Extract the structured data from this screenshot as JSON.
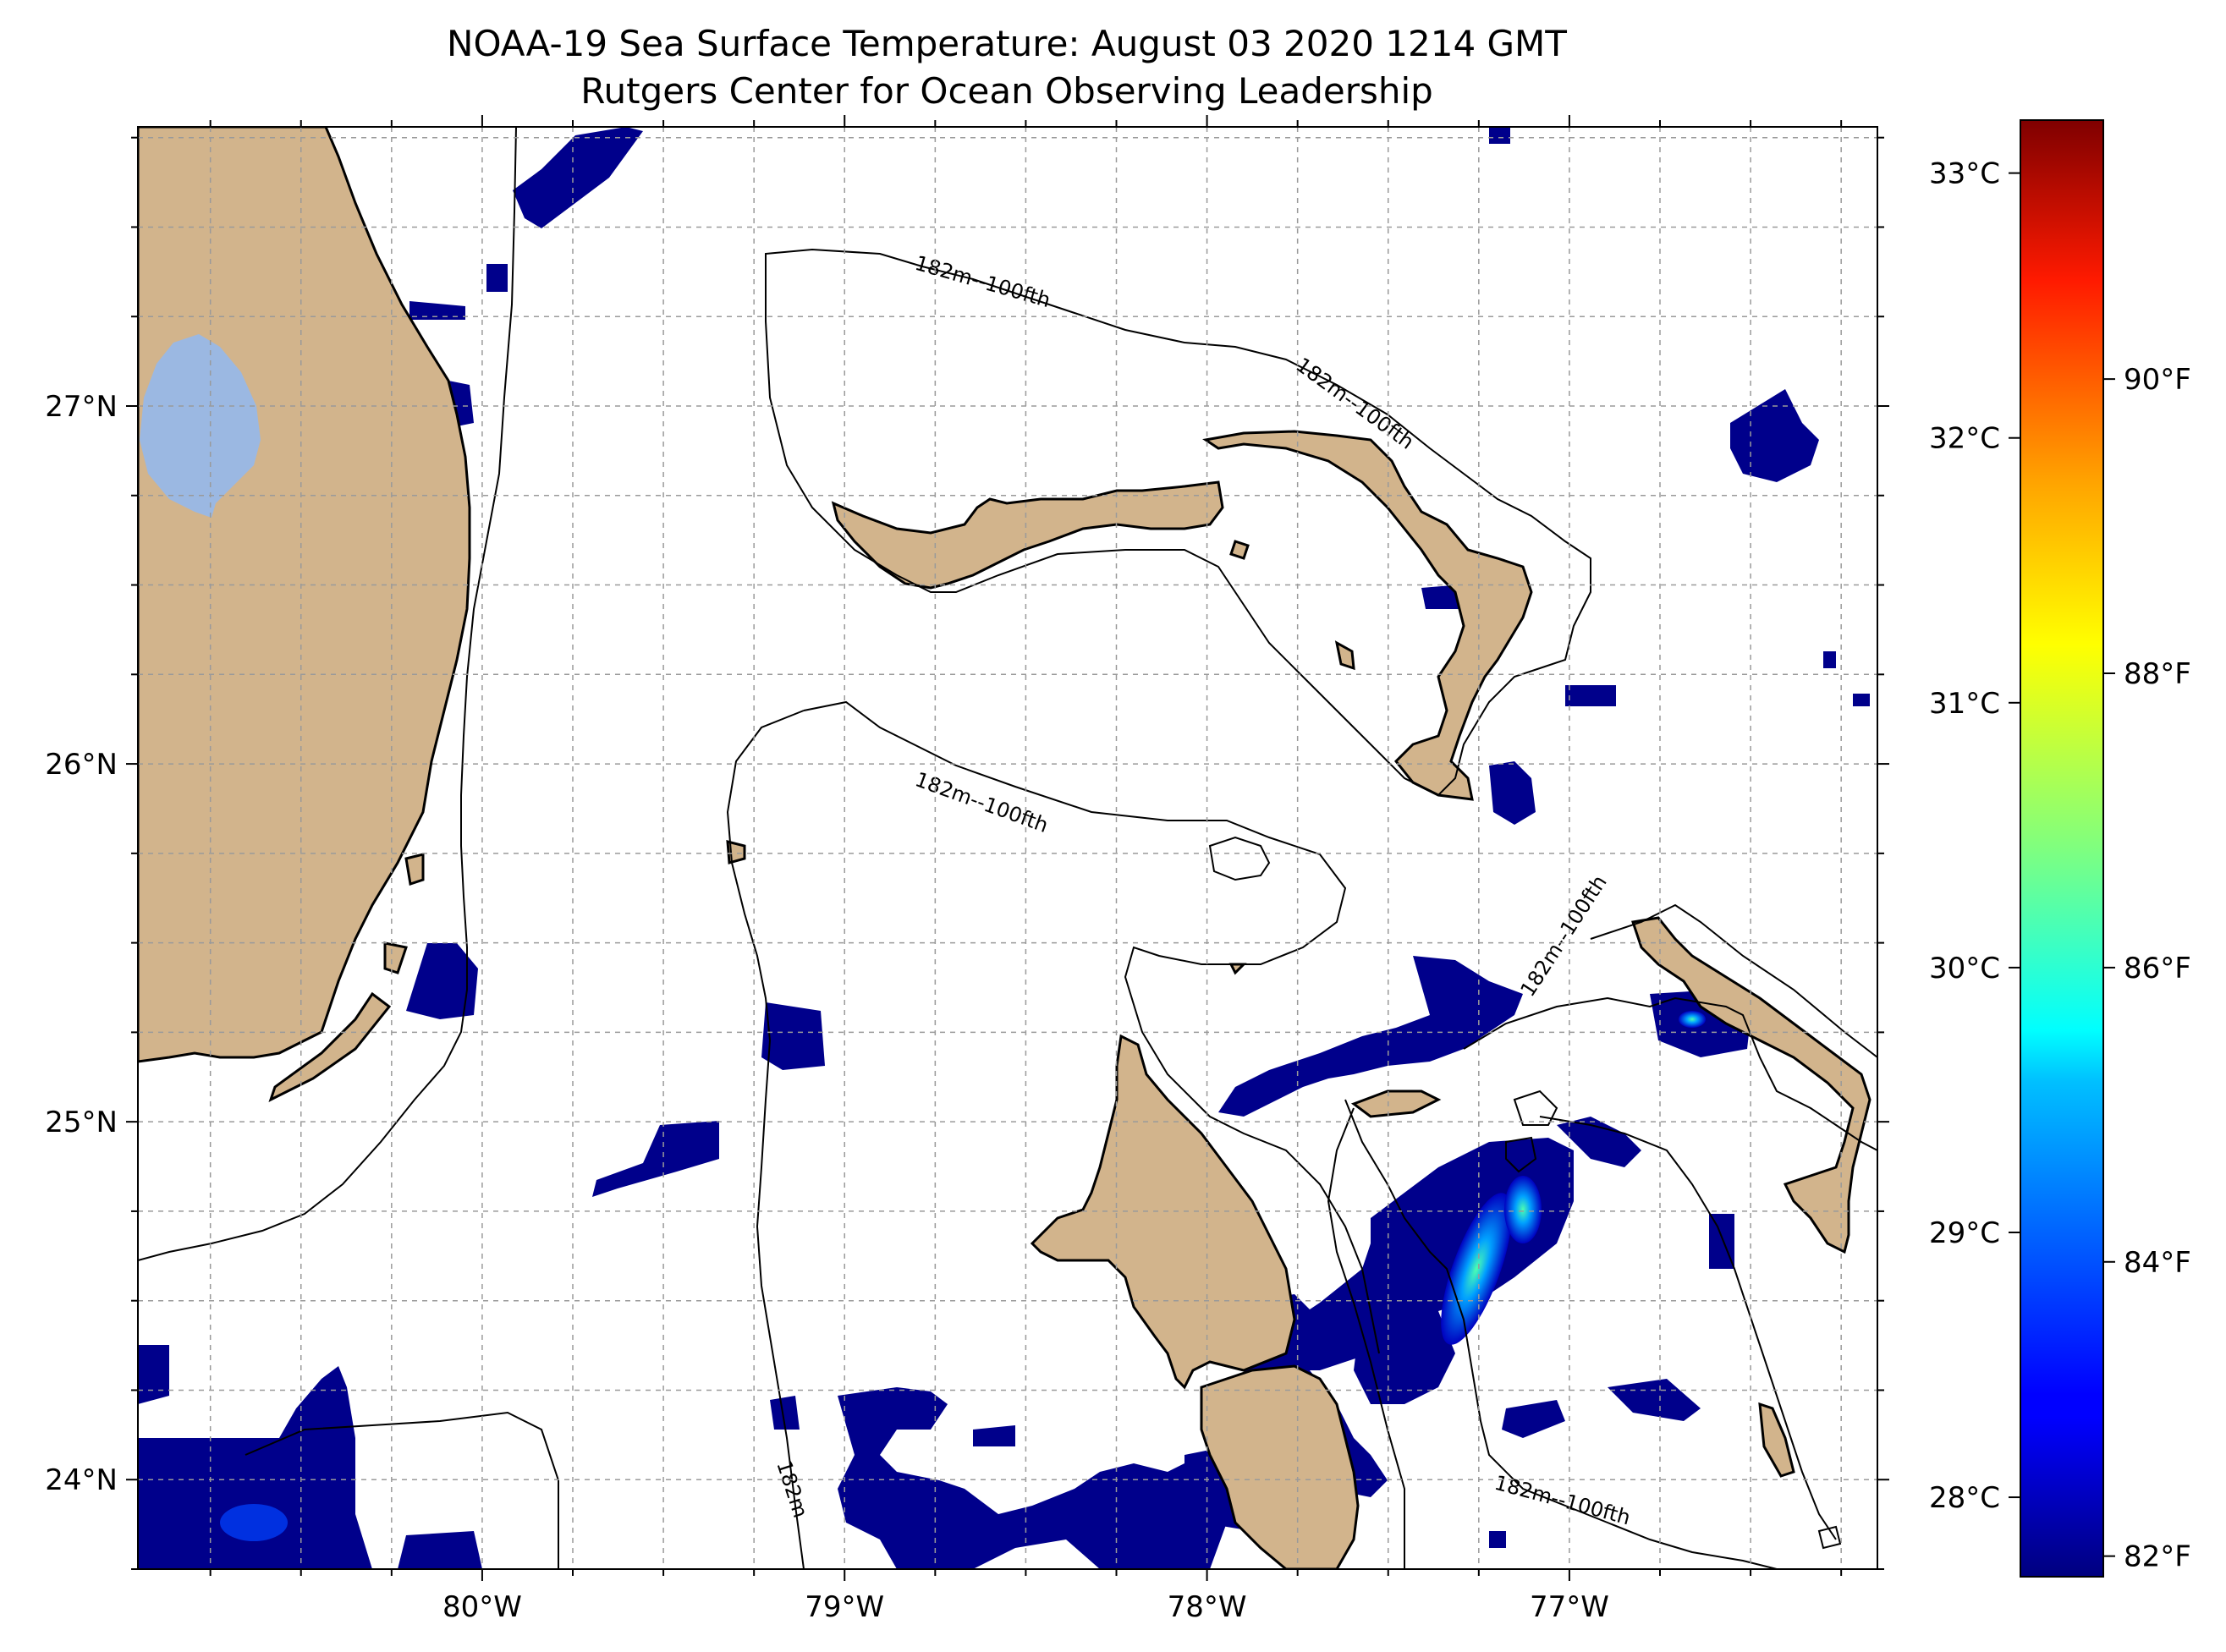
{
  "title": {
    "line1": "NOAA-19 Sea Surface Temperature: August 03 2020 1214 GMT",
    "line2": "Rutgers Center for Ocean Observing Leadership"
  },
  "map": {
    "lon_range": [
      -80.95,
      -76.15
    ],
    "lat_range": [
      23.75,
      27.78
    ],
    "lon_ticks": [
      {
        "value": -80,
        "label": "80°W"
      },
      {
        "value": -79,
        "label": "79°W"
      },
      {
        "value": -78,
        "label": "78°W"
      },
      {
        "value": -77,
        "label": "77°W"
      }
    ],
    "lat_ticks": [
      {
        "value": 27,
        "label": "27°N"
      },
      {
        "value": 26,
        "label": "26°N"
      },
      {
        "value": 25,
        "label": "25°N"
      },
      {
        "value": 24,
        "label": "24°N"
      }
    ],
    "gridlines": true,
    "contour_labels": [
      "182m--100fth",
      "182m--100fth",
      "182m--100fth",
      "182m--100fth",
      "182m--100fth",
      "182m"
    ]
  },
  "colorbar": {
    "celsius_ticks": [
      {
        "value": 33,
        "label": "33°C"
      },
      {
        "value": 32,
        "label": "32°C"
      },
      {
        "value": 31,
        "label": "31°C"
      },
      {
        "value": 30,
        "label": "30°C"
      },
      {
        "value": 29,
        "label": "29°C"
      },
      {
        "value": 28,
        "label": "28°C"
      }
    ],
    "fahrenheit_ticks": [
      {
        "value": 90,
        "label": "90°F"
      },
      {
        "value": 88,
        "label": "88°F"
      },
      {
        "value": 86,
        "label": "86°F"
      },
      {
        "value": 84,
        "label": "84°F"
      },
      {
        "value": 82,
        "label": "82°F"
      }
    ],
    "range_c": [
      27.7,
      33.2
    ],
    "colormap": "jet"
  },
  "colors": {
    "land": "#d2b48c",
    "lake": "#9bb8e2",
    "sst_cold": "#00008b"
  }
}
